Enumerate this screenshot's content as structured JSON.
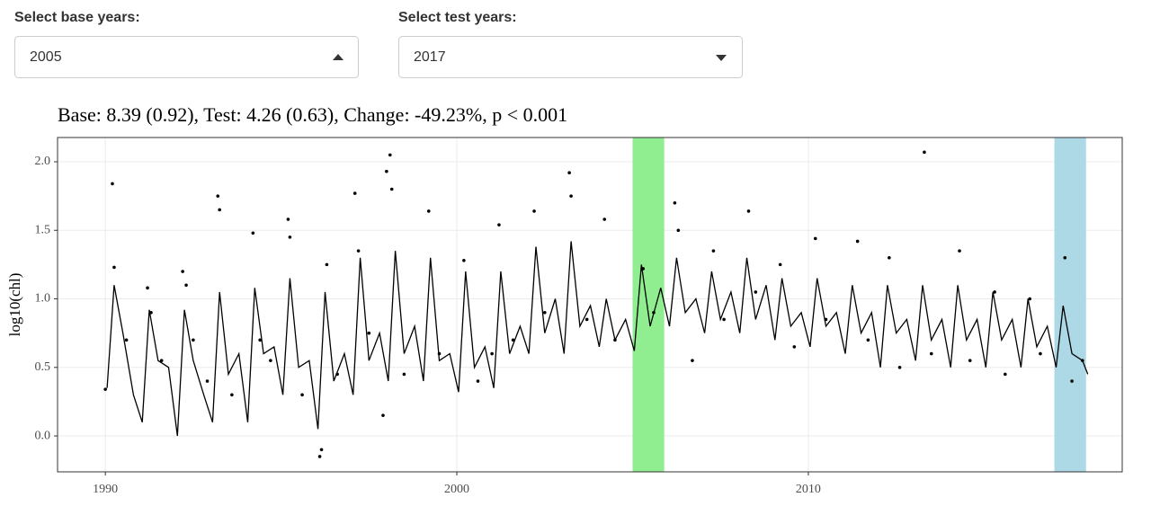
{
  "controls": {
    "base": {
      "label": "Select base years:",
      "selected": "2005"
    },
    "test": {
      "label": "Select test years:",
      "selected": "2017"
    }
  },
  "chart_data": {
    "type": "scatter",
    "title": "Base: 8.39 (0.92), Test: 4.26 (0.63), Change: -49.23%, p < 0.001",
    "y_label": "log10(chl)",
    "xlim": [
      1988.64,
      2018.93
    ],
    "ylim": [
      -0.262,
      2.177
    ],
    "xticks": [
      1990,
      2000,
      2010
    ],
    "yticks": [
      {
        "value": 0,
        "label": "0.0"
      },
      0.5,
      {
        "value": 1,
        "label": "1.0"
      },
      1.5,
      {
        "value": 2,
        "label": "2.0"
      }
    ],
    "grid": true,
    "bands": [
      {
        "xlim": [
          2005.0,
          2005.9
        ],
        "color": "#90ee90"
      },
      {
        "xlim": [
          2017.0,
          2017.9
        ],
        "color": "#add8e6"
      }
    ],
    "line": {
      "color": "#000000",
      "x": [
        1990.05,
        1990.25,
        1990.5,
        1990.8,
        1991.05,
        1991.25,
        1991.5,
        1991.8,
        1992.05,
        1992.25,
        1992.5,
        1992.8,
        1993.05,
        1993.25,
        1993.5,
        1993.8,
        1994.05,
        1994.25,
        1994.5,
        1994.8,
        1995.05,
        1995.25,
        1995.5,
        1995.8,
        1996.05,
        1996.25,
        1996.5,
        1996.8,
        1997.05,
        1997.25,
        1997.5,
        1997.8,
        1998.05,
        1998.25,
        1998.5,
        1998.8,
        1999.05,
        1999.25,
        1999.5,
        1999.8,
        2000.05,
        2000.25,
        2000.5,
        2000.8,
        2001.05,
        2001.25,
        2001.5,
        2001.8,
        2002.05,
        2002.25,
        2002.5,
        2002.8,
        2003.05,
        2003.25,
        2003.5,
        2003.8,
        2004.05,
        2004.25,
        2004.5,
        2004.8,
        2005.05,
        2005.25,
        2005.5,
        2005.8,
        2006.05,
        2006.25,
        2006.5,
        2006.8,
        2007.05,
        2007.25,
        2007.5,
        2007.8,
        2008.05,
        2008.25,
        2008.5,
        2008.8,
        2009.05,
        2009.25,
        2009.5,
        2009.8,
        2010.05,
        2010.25,
        2010.5,
        2010.8,
        2011.05,
        2011.25,
        2011.5,
        2011.8,
        2012.05,
        2012.25,
        2012.5,
        2012.8,
        2013.05,
        2013.25,
        2013.5,
        2013.8,
        2014.05,
        2014.25,
        2014.5,
        2014.8,
        2015.05,
        2015.25,
        2015.5,
        2015.8,
        2016.05,
        2016.25,
        2016.5,
        2016.8,
        2017.05,
        2017.25,
        2017.5,
        2017.8,
        2017.95
      ],
      "y": [
        0.35,
        1.1,
        0.75,
        0.3,
        0.1,
        0.92,
        0.55,
        0.5,
        0.0,
        0.92,
        0.55,
        0.3,
        0.1,
        1.05,
        0.45,
        0.6,
        0.1,
        1.08,
        0.6,
        0.65,
        0.3,
        1.15,
        0.5,
        0.55,
        0.05,
        1.05,
        0.4,
        0.6,
        0.3,
        1.3,
        0.55,
        0.75,
        0.4,
        1.35,
        0.6,
        0.8,
        0.4,
        1.3,
        0.55,
        0.6,
        0.32,
        1.2,
        0.5,
        0.65,
        0.35,
        1.2,
        0.6,
        0.8,
        0.6,
        1.38,
        0.75,
        1.0,
        0.6,
        1.42,
        0.8,
        0.95,
        0.65,
        1.0,
        0.7,
        0.85,
        0.62,
        1.25,
        0.8,
        1.08,
        0.8,
        1.3,
        0.9,
        1.0,
        0.75,
        1.2,
        0.85,
        1.05,
        0.75,
        1.3,
        0.85,
        1.1,
        0.7,
        1.15,
        0.8,
        0.9,
        0.65,
        1.15,
        0.8,
        0.9,
        0.6,
        1.1,
        0.75,
        0.9,
        0.5,
        1.1,
        0.75,
        0.85,
        0.55,
        1.1,
        0.7,
        0.85,
        0.5,
        1.1,
        0.7,
        0.85,
        0.5,
        1.05,
        0.7,
        0.85,
        0.5,
        1.0,
        0.65,
        0.8,
        0.5,
        0.95,
        0.6,
        0.55,
        0.45
      ]
    },
    "points": {
      "color": "#000000",
      "x": [
        1990.0,
        1990.2,
        1990.25,
        1990.6,
        1991.2,
        1991.3,
        1991.6,
        1992.2,
        1992.3,
        1992.5,
        1992.9,
        1993.2,
        1993.25,
        1993.6,
        1994.2,
        1994.4,
        1994.7,
        1995.2,
        1995.25,
        1995.6,
        1996.1,
        1996.15,
        1996.3,
        1996.6,
        1997.1,
        1997.2,
        1997.5,
        1997.9,
        1998.0,
        1998.1,
        1998.15,
        1998.5,
        1999.2,
        1999.5,
        2000.2,
        2000.6,
        2001.0,
        2001.2,
        2001.6,
        2002.2,
        2002.5,
        2003.2,
        2003.25,
        2003.7,
        2004.2,
        2004.5,
        2005.3,
        2005.6,
        2006.2,
        2006.3,
        2006.7,
        2007.3,
        2007.6,
        2008.3,
        2008.5,
        2009.2,
        2009.6,
        2010.2,
        2010.5,
        2011.4,
        2011.7,
        2012.3,
        2012.6,
        2013.3,
        2013.5,
        2014.3,
        2014.6,
        2015.3,
        2015.6,
        2016.3,
        2016.6,
        2017.3,
        2017.5,
        2017.8
      ],
      "y": [
        0.34,
        1.84,
        1.23,
        0.7,
        1.08,
        0.9,
        0.55,
        1.2,
        1.1,
        0.7,
        0.4,
        1.75,
        1.65,
        0.3,
        1.48,
        0.7,
        0.55,
        1.58,
        1.45,
        0.3,
        -0.15,
        -0.1,
        1.25,
        0.45,
        1.77,
        1.35,
        0.75,
        0.15,
        1.93,
        2.05,
        1.8,
        0.45,
        1.64,
        0.6,
        1.28,
        0.4,
        0.6,
        1.54,
        0.7,
        1.64,
        0.9,
        1.92,
        1.75,
        0.85,
        1.58,
        0.7,
        1.22,
        0.9,
        1.7,
        1.5,
        0.55,
        1.35,
        0.85,
        1.64,
        1.05,
        1.25,
        0.65,
        1.44,
        0.85,
        1.42,
        0.7,
        1.3,
        0.5,
        2.07,
        0.6,
        1.35,
        0.55,
        1.05,
        0.45,
        1.0,
        0.6,
        1.3,
        0.4,
        0.55
      ]
    }
  }
}
